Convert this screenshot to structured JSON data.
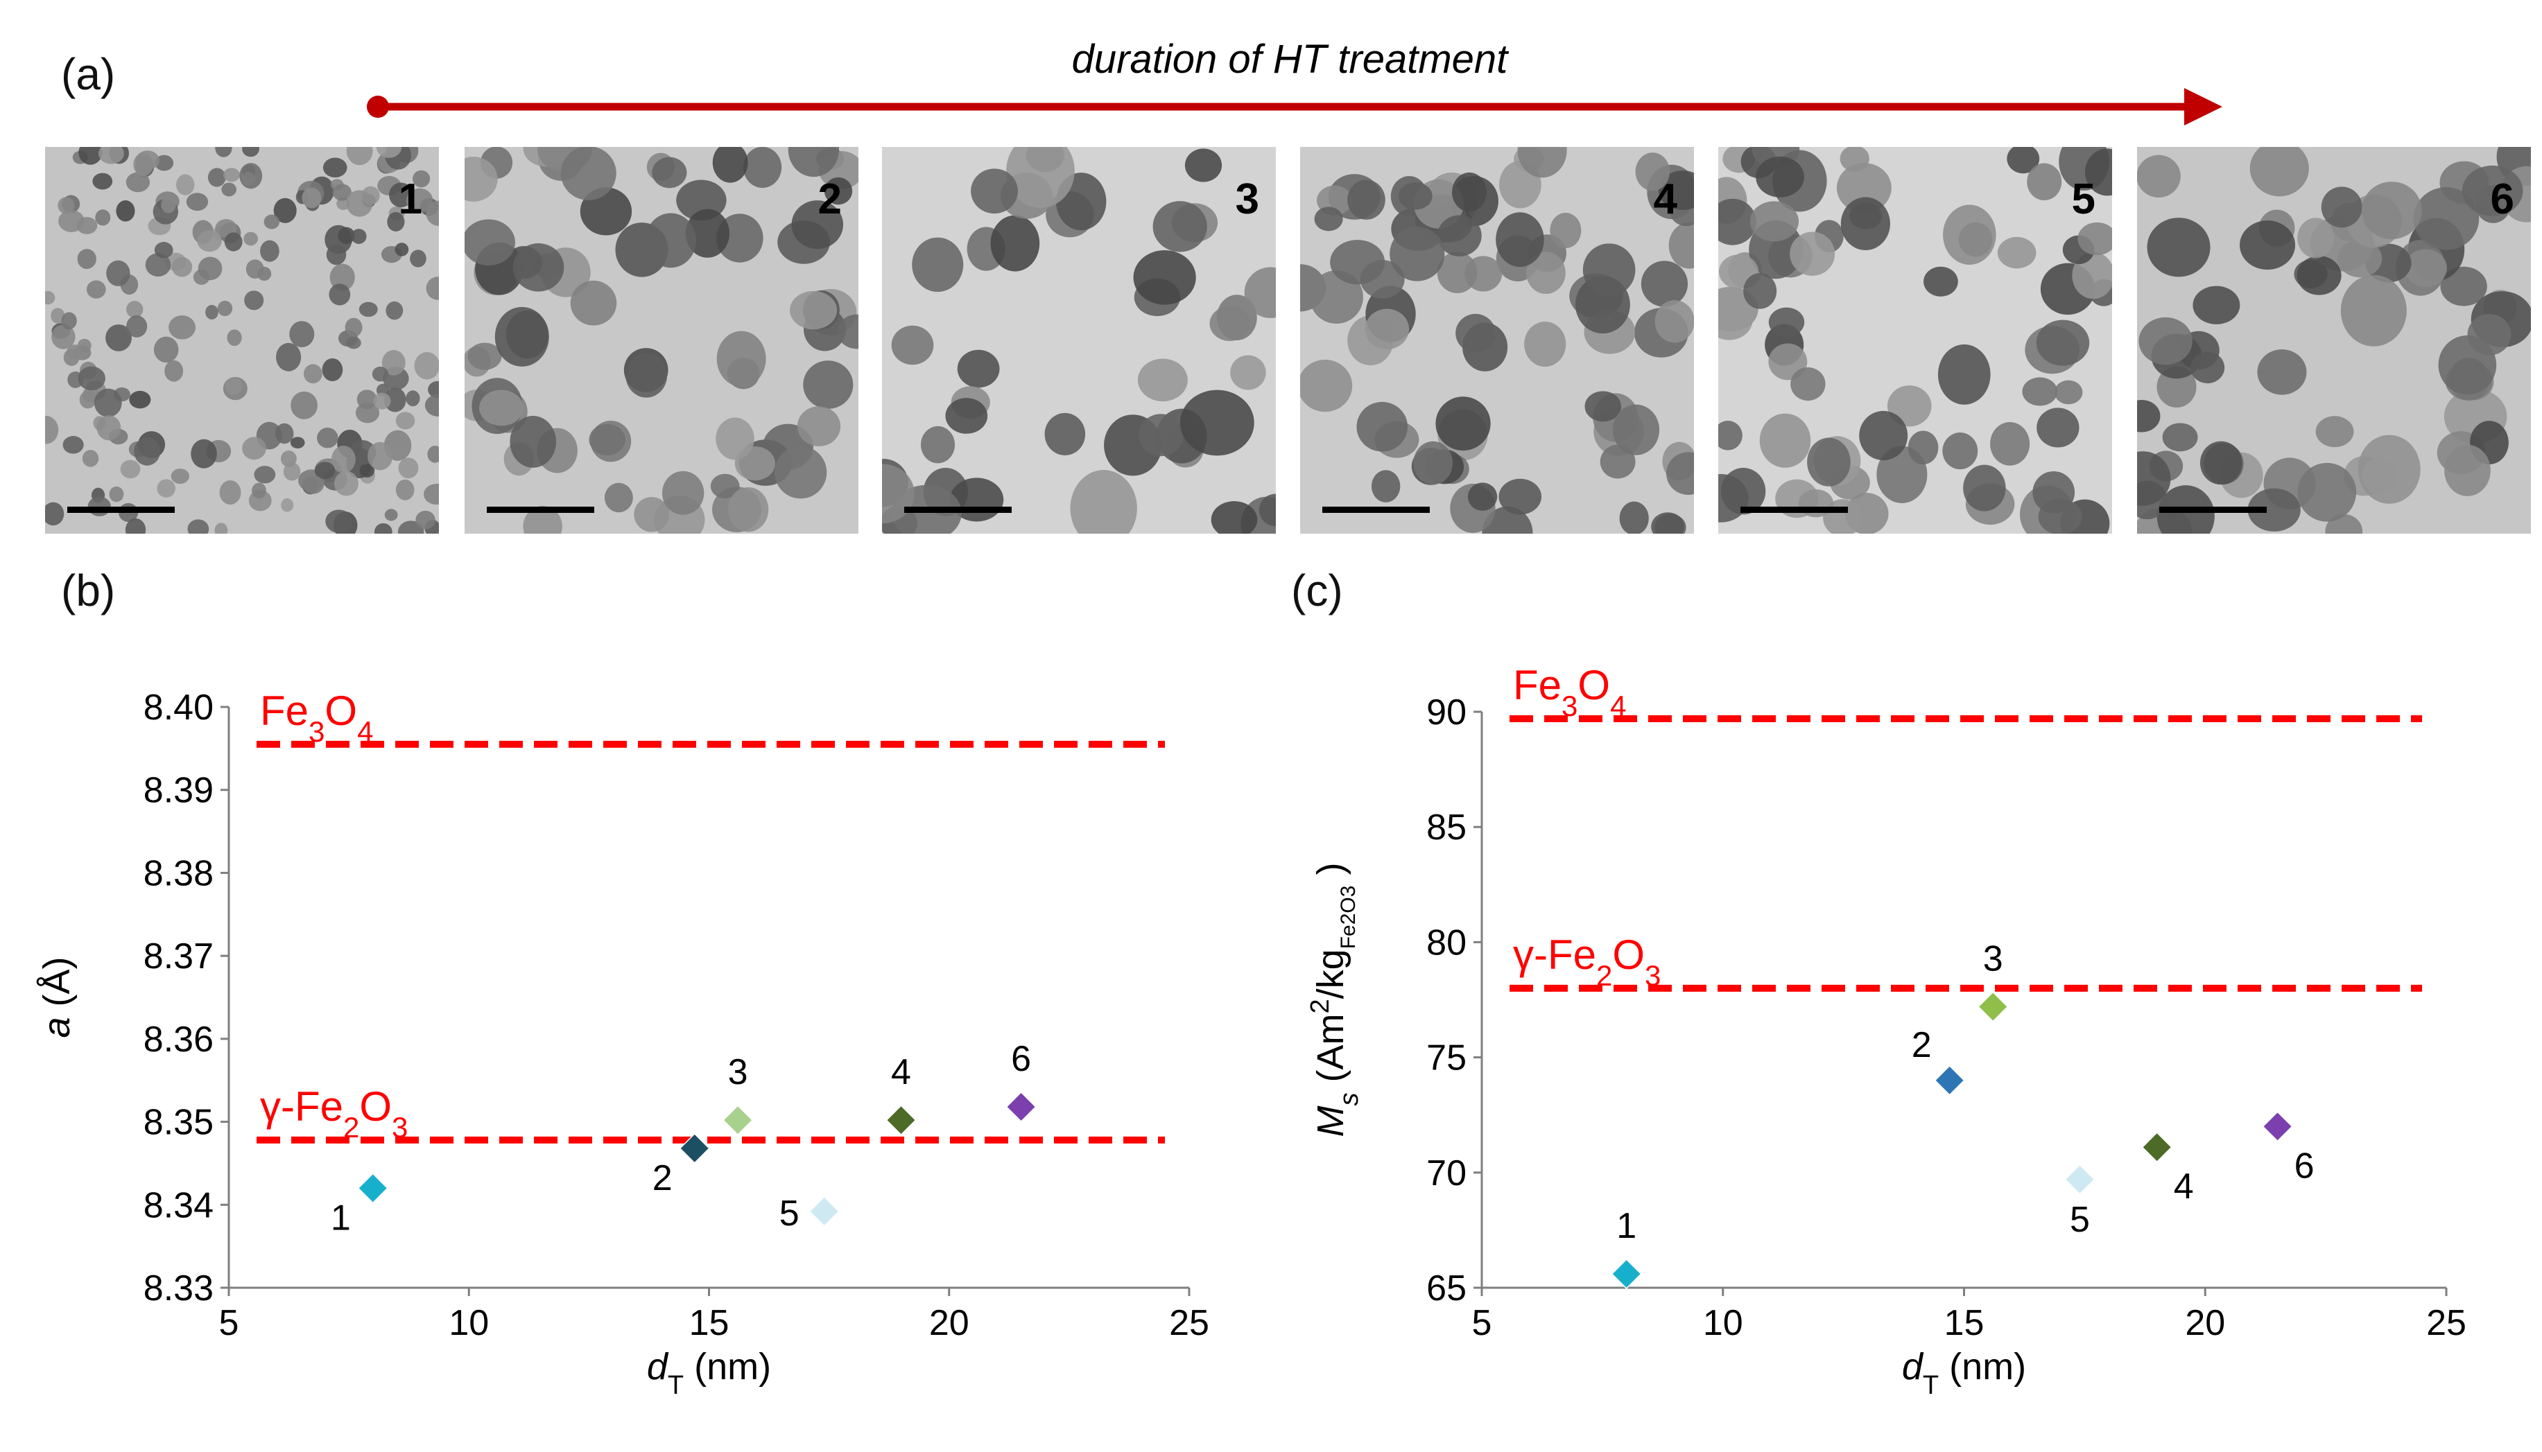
{
  "panel_labels": {
    "a": "(a)",
    "b": "(b)",
    "c": "(c)"
  },
  "timeline": {
    "label": "duration of HT treatment",
    "color": "#c00000"
  },
  "tem_images": [
    {
      "id": "1",
      "tone": "#c4c4c4",
      "density": "dense-small"
    },
    {
      "id": "2",
      "tone": "#c8c8c8",
      "density": "medium"
    },
    {
      "id": "3",
      "tone": "#d3d3d3",
      "density": "sparse-large"
    },
    {
      "id": "4",
      "tone": "#cbcbcb",
      "density": "medium"
    },
    {
      "id": "5",
      "tone": "#d5d5d5",
      "density": "medium"
    },
    {
      "id": "6",
      "tone": "#c6c6c6",
      "density": "medium-large"
    }
  ],
  "chart_data": [
    {
      "type": "scatter",
      "panel": "(b)",
      "title": "",
      "xlabel_main": "d",
      "xlabel_sub": "T",
      "xlabel_unit": " (nm)",
      "ylabel_main": "a",
      "ylabel_unit": " (Å)",
      "xlim": [
        5,
        25
      ],
      "ylim": [
        8.33,
        8.4
      ],
      "xticks": [
        5,
        10,
        15,
        20,
        25
      ],
      "xtick_labels": [
        "5",
        "10",
        "15",
        "20",
        "25"
      ],
      "yticks": [
        8.33,
        8.34,
        8.35,
        8.36,
        8.37,
        8.38,
        8.39,
        8.4
      ],
      "ytick_labels": [
        "8.33",
        "8.34",
        "8.35",
        "8.36",
        "8.37",
        "8.38",
        "8.39",
        "8.40"
      ],
      "reference_lines": [
        {
          "name": "Fe3O4",
          "label_parts": [
            "Fe",
            "3",
            "O",
            "4"
          ],
          "y": 8.3955,
          "color": "#ff0000"
        },
        {
          "name": "γ-Fe2O3",
          "label_parts": [
            "γ-Fe",
            "2",
            "O",
            "3"
          ],
          "y": 8.3478,
          "color": "#ff0000"
        }
      ],
      "points": [
        {
          "label": "1",
          "x": 8.0,
          "y": 8.342,
          "color": "#17b0cc",
          "label_pos": "below-left"
        },
        {
          "label": "2",
          "x": 14.7,
          "y": 8.3468,
          "color": "#1d4f63",
          "label_pos": "below-left"
        },
        {
          "label": "3",
          "x": 15.6,
          "y": 8.3502,
          "color": "#a9d18e",
          "label_pos": "above"
        },
        {
          "label": "4",
          "x": 19.0,
          "y": 8.3502,
          "color": "#4b6b26",
          "label_pos": "above"
        },
        {
          "label": "5",
          "x": 17.4,
          "y": 8.3392,
          "color": "#cfe9f3",
          "label_pos": "left"
        },
        {
          "label": "6",
          "x": 21.5,
          "y": 8.3518,
          "color": "#7b3fae",
          "label_pos": "above"
        }
      ]
    },
    {
      "type": "scatter",
      "panel": "(c)",
      "title": "",
      "xlabel_main": "d",
      "xlabel_sub": "T",
      "xlabel_unit": " (nm)",
      "ylabel_main": "M",
      "ylabel_sub": "s",
      "ylabel_unit_a": " (Am",
      "ylabel_sup": "2",
      "ylabel_unit_b": "/kg",
      "ylabel_sub2": "Fe2O3",
      "ylabel_unit_c": " )",
      "xlim": [
        5,
        25
      ],
      "ylim": [
        65,
        90
      ],
      "xticks": [
        5,
        10,
        15,
        20,
        25
      ],
      "xtick_labels": [
        "5",
        "10",
        "15",
        "20",
        "25"
      ],
      "yticks": [
        65,
        70,
        75,
        80,
        85,
        90
      ],
      "ytick_labels": [
        "65",
        "70",
        "75",
        "80",
        "85",
        "90"
      ],
      "reference_lines": [
        {
          "name": "Fe3O4",
          "label_parts": [
            "Fe",
            "3",
            "O",
            "4"
          ],
          "y": 89.7,
          "color": "#ff0000"
        },
        {
          "name": "γ-Fe2O3",
          "label_parts": [
            "γ-Fe",
            "2",
            "O",
            "3"
          ],
          "y": 78.0,
          "color": "#ff0000"
        }
      ],
      "points": [
        {
          "label": "1",
          "x": 8.0,
          "y": 65.6,
          "color": "#17b0cc",
          "label_pos": "above"
        },
        {
          "label": "2",
          "x": 14.7,
          "y": 74.0,
          "color": "#2e75b6",
          "label_pos": "above-left"
        },
        {
          "label": "3",
          "x": 15.6,
          "y": 77.2,
          "color": "#8fbf4a",
          "label_pos": "above"
        },
        {
          "label": "4",
          "x": 19.0,
          "y": 71.1,
          "color": "#4b6b26",
          "label_pos": "below-right"
        },
        {
          "label": "5",
          "x": 17.4,
          "y": 69.7,
          "color": "#cfe9f3",
          "label_pos": "below"
        },
        {
          "label": "6",
          "x": 21.5,
          "y": 72.0,
          "color": "#7b3fae",
          "label_pos": "below-right"
        }
      ]
    }
  ]
}
